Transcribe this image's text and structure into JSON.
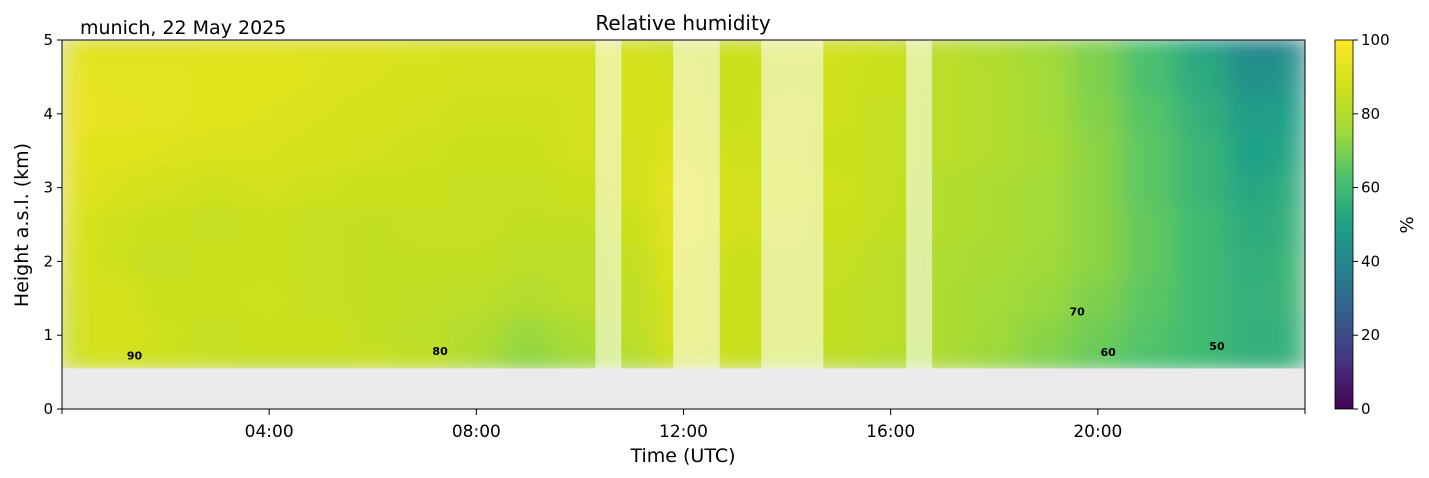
{
  "header": {
    "location_date": "munich, 22 May 2025"
  },
  "chart_data": {
    "type": "heatmap",
    "title": "Relative humidity",
    "xlabel": "Time (UTC)",
    "ylabel": "Height a.s.l. (km)",
    "xlim_hours": [
      0,
      24
    ],
    "ylim": [
      0,
      5
    ],
    "x_ticks": [
      {
        "hour": 4,
        "label": "04:00"
      },
      {
        "hour": 8,
        "label": "08:00"
      },
      {
        "hour": 12,
        "label": "12:00"
      },
      {
        "hour": 16,
        "label": "16:00"
      },
      {
        "hour": 20,
        "label": "20:00"
      }
    ],
    "y_ticks": [
      0,
      1,
      2,
      3,
      4,
      5
    ],
    "colorbar": {
      "label": "%",
      "min": 0,
      "max": 100,
      "ticks": [
        0,
        20,
        40,
        60,
        80,
        100
      ],
      "colormap": "viridis"
    },
    "data_min_height_km": 0.55,
    "time_hours": [
      0.1,
      1,
      2,
      3,
      4,
      5,
      6,
      7,
      8,
      9,
      10,
      11,
      12,
      13,
      14,
      15,
      16,
      17,
      18,
      19,
      20,
      21,
      22,
      23,
      23.9
    ],
    "heights_km": [
      0.6,
      1.0,
      1.5,
      2.0,
      2.5,
      3.0,
      3.5,
      4.0,
      4.5,
      5.0
    ],
    "rh_percent": [
      [
        88,
        88,
        86,
        85,
        84,
        84,
        85,
        84,
        78,
        72,
        75,
        80,
        86,
        85,
        84,
        82,
        80,
        78,
        74,
        70,
        66,
        62,
        60,
        56,
        56
      ],
      [
        87,
        90,
        87,
        85,
        86,
        86,
        84,
        82,
        80,
        74,
        78,
        82,
        90,
        86,
        86,
        84,
        82,
        78,
        75,
        72,
        68,
        64,
        60,
        56,
        56
      ],
      [
        88,
        89,
        86,
        86,
        87,
        85,
        84,
        83,
        82,
        80,
        82,
        83,
        90,
        86,
        86,
        84,
        82,
        78,
        76,
        74,
        70,
        65,
        60,
        56,
        58
      ],
      [
        90,
        87,
        85,
        86,
        86,
        85,
        84,
        84,
        84,
        82,
        82,
        84,
        92,
        86,
        87,
        85,
        82,
        79,
        77,
        75,
        72,
        66,
        60,
        55,
        58
      ],
      [
        91,
        87,
        86,
        85,
        86,
        85,
        84,
        85,
        85,
        84,
        84,
        86,
        93,
        88,
        88,
        86,
        84,
        80,
        78,
        76,
        72,
        66,
        60,
        54,
        56
      ],
      [
        93,
        90,
        88,
        87,
        88,
        87,
        86,
        86,
        85,
        85,
        86,
        88,
        94,
        88,
        89,
        87,
        85,
        80,
        78,
        76,
        72,
        65,
        58,
        52,
        55
      ],
      [
        94,
        92,
        91,
        90,
        90,
        89,
        88,
        87,
        86,
        86,
        88,
        88,
        92,
        87,
        88,
        86,
        85,
        82,
        80,
        77,
        72,
        65,
        58,
        50,
        52
      ],
      [
        95,
        94,
        93,
        92,
        91,
        90,
        89,
        88,
        87,
        87,
        88,
        89,
        90,
        86,
        88,
        87,
        85,
        82,
        80,
        76,
        71,
        64,
        56,
        48,
        50
      ],
      [
        94,
        93,
        93,
        92,
        92,
        91,
        90,
        89,
        88,
        88,
        88,
        89,
        88,
        86,
        87,
        87,
        86,
        82,
        80,
        76,
        70,
        62,
        54,
        44,
        46
      ],
      [
        93,
        92,
        92,
        92,
        92,
        91,
        91,
        90,
        89,
        89,
        89,
        89,
        86,
        86,
        88,
        88,
        86,
        82,
        79,
        75,
        70,
        62,
        52,
        40,
        40
      ]
    ],
    "masked_time_intervals": [
      [
        10.3,
        10.8
      ],
      [
        11.8,
        12.7
      ],
      [
        13.5,
        14.7
      ],
      [
        16.3,
        16.8
      ]
    ],
    "contour_labels": [
      {
        "text": "90",
        "hour": 1.4,
        "km": 0.67
      },
      {
        "text": "80",
        "hour": 7.3,
        "km": 0.73
      },
      {
        "text": "70",
        "hour": 19.6,
        "km": 1.27
      },
      {
        "text": "60",
        "hour": 20.2,
        "km": 0.72
      },
      {
        "text": "50",
        "hour": 22.3,
        "km": 0.8
      }
    ]
  }
}
